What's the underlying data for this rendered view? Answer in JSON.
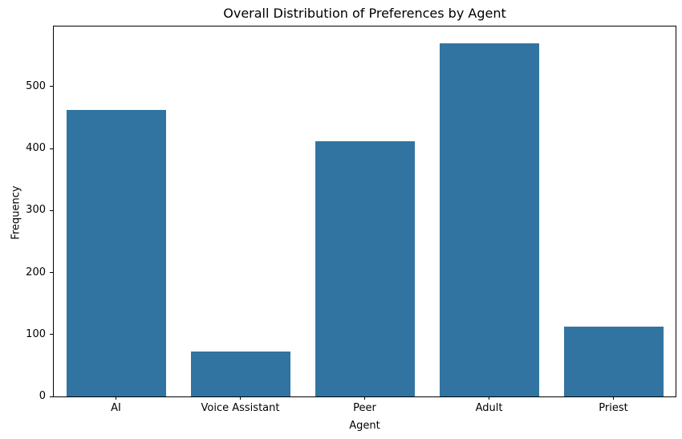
{
  "chart_data": {
    "type": "bar",
    "title": "Overall Distribution of Preferences by Agent",
    "xlabel": "Agent",
    "ylabel": "Frequency",
    "categories": [
      "AI",
      "Voice Assistant",
      "Peer",
      "Adult",
      "Priest"
    ],
    "values": [
      462,
      73,
      412,
      570,
      113
    ],
    "ylim": [
      0,
      597
    ],
    "yticks": [
      0,
      100,
      200,
      300,
      400,
      500
    ],
    "bar_color": "#3274a1",
    "bar_width_fraction": 0.8,
    "grid": false,
    "legend_position": "none",
    "text_color": "#000000",
    "background_color": "#ffffff"
  }
}
